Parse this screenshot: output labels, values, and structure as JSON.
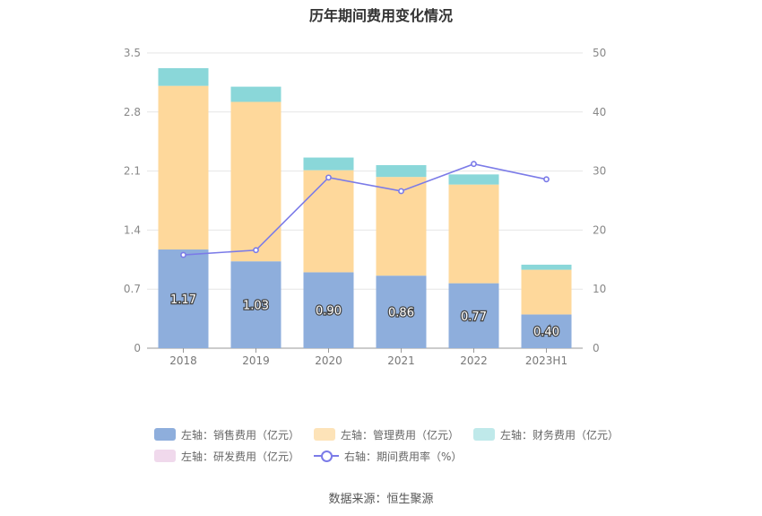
{
  "title": "历年期间费用变化情况",
  "source": "数据来源：恒生聚源",
  "chart_data": {
    "type": "bar",
    "stacked": true,
    "categories": [
      "2018",
      "2019",
      "2020",
      "2021",
      "2022",
      "2023H1"
    ],
    "y_left": {
      "lim": [
        0,
        3.5
      ],
      "ticks": [
        "0",
        "0.7",
        "1.4",
        "2.1",
        "2.8",
        "3.5"
      ]
    },
    "y_right": {
      "lim": [
        0,
        50
      ],
      "ticks": [
        "0",
        "10",
        "20",
        "30",
        "40",
        "50"
      ]
    },
    "series": [
      {
        "name": "左轴：销售费用（亿元）",
        "axis": "left",
        "type": "bar",
        "color": "#8eaedc",
        "values": [
          1.17,
          1.03,
          0.9,
          0.86,
          0.77,
          0.4
        ],
        "labels": [
          "1.17",
          "1.03",
          "0.90",
          "0.86",
          "0.77",
          "0.40"
        ]
      },
      {
        "name": "左轴：管理费用（亿元）",
        "axis": "left",
        "type": "bar",
        "color": "#fed89b",
        "values": [
          1.94,
          1.89,
          1.21,
          1.17,
          1.17,
          0.53
        ]
      },
      {
        "name": "左轴：财务费用（亿元）",
        "axis": "left",
        "type": "bar",
        "color": "#8ad7d9",
        "values": [
          0.21,
          0.18,
          0.15,
          0.14,
          0.12,
          0.06
        ]
      },
      {
        "name": "左轴：研发费用（亿元）",
        "axis": "left",
        "type": "bar",
        "color": "#f0d9ec",
        "values": [
          0,
          0,
          0,
          0,
          0,
          0
        ]
      },
      {
        "name": "右轴：期间费用率（%）",
        "axis": "right",
        "type": "line",
        "color": "#7b7be8",
        "values": [
          15.8,
          16.6,
          28.9,
          26.6,
          31.2,
          28.6
        ]
      }
    ],
    "legend_position": "bottom",
    "grid": true
  }
}
